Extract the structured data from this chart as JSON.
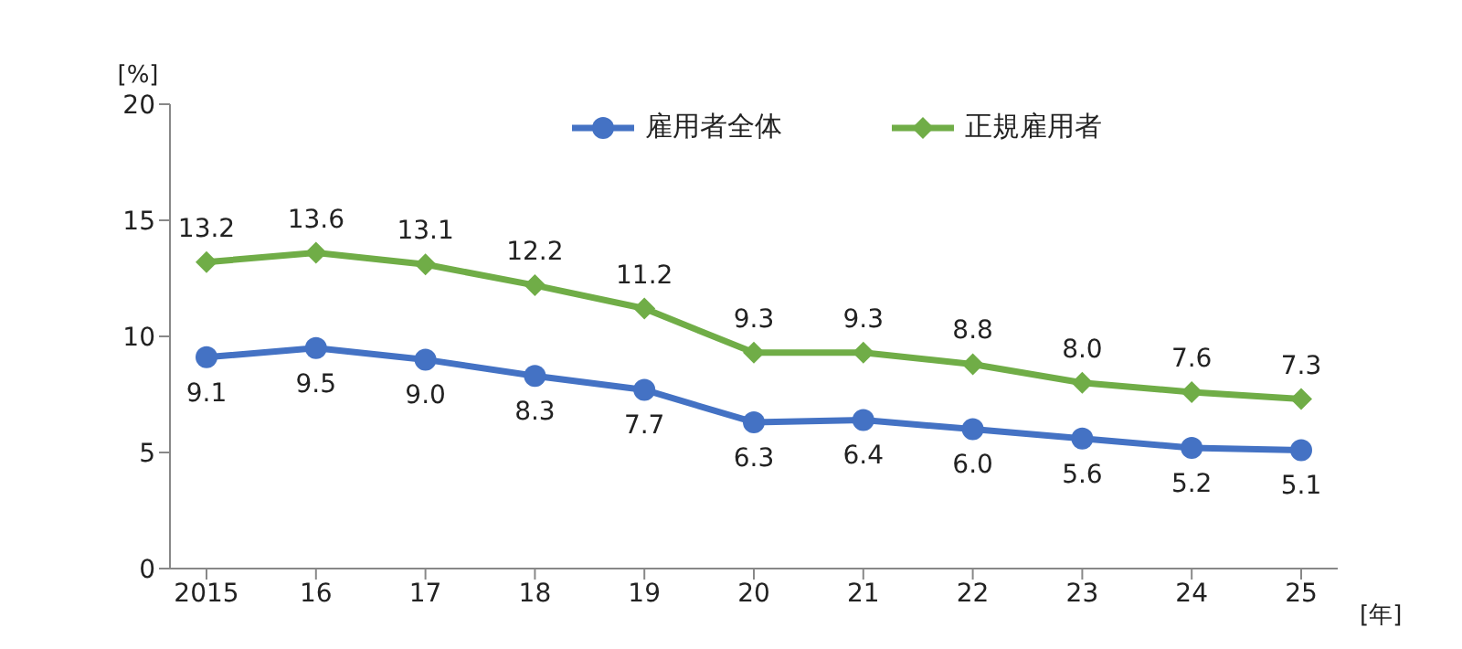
{
  "chart_data": {
    "type": "line",
    "ylabel": "[%]",
    "xlabel": "[年]",
    "categories": [
      "2015",
      "16",
      "17",
      "18",
      "19",
      "20",
      "21",
      "22",
      "23",
      "24",
      "25"
    ],
    "series": [
      {
        "name": "雇用者全体",
        "color": "#4472c4",
        "marker": "circle",
        "values": [
          9.1,
          9.5,
          9.0,
          8.3,
          7.7,
          6.3,
          6.4,
          6.0,
          5.6,
          5.2,
          5.1
        ],
        "value_labels": [
          "9.1",
          "9.5",
          "9.0",
          "8.3",
          "7.7",
          "6.3",
          "6.4",
          "6.0",
          "5.6",
          "5.2",
          "5.1"
        ]
      },
      {
        "name": "正規雇用者",
        "color": "#70ad47",
        "marker": "diamond",
        "values": [
          13.2,
          13.6,
          13.1,
          12.2,
          11.2,
          9.3,
          9.3,
          8.8,
          8.0,
          7.6,
          7.3
        ],
        "value_labels": [
          "13.2",
          "13.6",
          "13.1",
          "12.2",
          "11.2",
          "9.3",
          "9.3",
          "8.8",
          "8.0",
          "7.6",
          "7.3"
        ]
      }
    ],
    "ylim": [
      0,
      20
    ],
    "yticks": [
      0,
      5,
      10,
      15,
      20
    ],
    "legend": "top"
  }
}
